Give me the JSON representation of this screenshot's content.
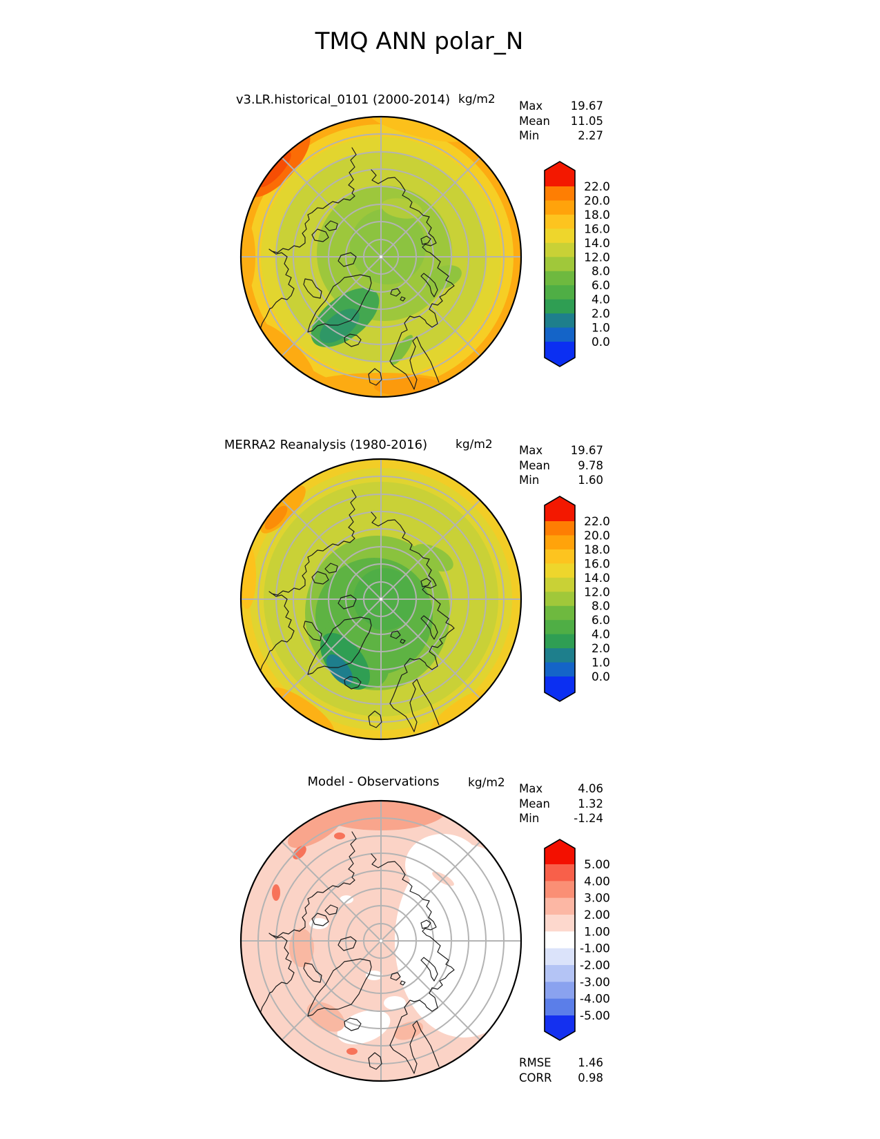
{
  "figure_title": "TMQ ANN polar_N",
  "panels": [
    {
      "id": "model",
      "title": "v3.LR.historical_0101 (2000-2014)",
      "units": "kg/m2",
      "stats": {
        "max_label": "Max",
        "max": "19.67",
        "mean_label": "Mean",
        "mean": "11.05",
        "min_label": "Min",
        "min": "2.27"
      },
      "colorbar": {
        "tick_labels_top_to_bottom": [
          "22.0",
          "20.0",
          "18.0",
          "16.0",
          "14.0",
          "12.0",
          "8.0",
          "6.0",
          "4.0",
          "2.0",
          "1.0",
          "0.0"
        ],
        "band_colors_bottom_to_top": [
          "#1464c8",
          "#1e7f8c",
          "#2f9e53",
          "#4fae45",
          "#6eb93f",
          "#a0c83a",
          "#c9d136",
          "#eed62c",
          "#fdc41f",
          "#ffa30b",
          "#fe7e03"
        ],
        "under_arrow_color": "#0b2ff2",
        "over_arrow_color": "#f31800"
      }
    },
    {
      "id": "obs",
      "title": "MERRA2 Reanalysis (1980-2016)",
      "units": "kg/m2",
      "stats": {
        "max_label": "Max",
        "max": "19.67",
        "mean_label": "Mean",
        "mean": "9.78",
        "min_label": "Min",
        "min": "1.60"
      },
      "colorbar": {
        "tick_labels_top_to_bottom": [
          "22.0",
          "20.0",
          "18.0",
          "16.0",
          "14.0",
          "12.0",
          "8.0",
          "6.0",
          "4.0",
          "2.0",
          "1.0",
          "0.0"
        ],
        "band_colors_bottom_to_top": [
          "#1464c8",
          "#1e7f8c",
          "#2f9e53",
          "#4fae45",
          "#6eb93f",
          "#a0c83a",
          "#c9d136",
          "#eed62c",
          "#fdc41f",
          "#ffa30b",
          "#fe7e03"
        ],
        "under_arrow_color": "#0b2ff2",
        "over_arrow_color": "#f31800"
      }
    },
    {
      "id": "diff",
      "title": "Model - Observations",
      "units": "kg/m2",
      "stats": {
        "max_label": "Max",
        "max": "4.06",
        "mean_label": "Mean",
        "mean": "1.32",
        "min_label": "Min",
        "min": "-1.24"
      },
      "metrics": {
        "rmse_label": "RMSE",
        "rmse": "1.46",
        "corr_label": "CORR",
        "corr": "0.98"
      },
      "colorbar": {
        "tick_labels_top_to_bottom": [
          "5.00",
          "4.00",
          "3.00",
          "2.00",
          "1.00",
          "-1.00",
          "-2.00",
          "-3.00",
          "-4.00",
          "-5.00"
        ],
        "band_colors_bottom_to_top": [
          "#5b7ee9",
          "#8aa2ef",
          "#b4c4f5",
          "#dbe3fa",
          "#ffffff",
          "#fdd8cd",
          "#fcb7a4",
          "#fa8f75",
          "#f8604a"
        ],
        "under_arrow_color": "#1430f0",
        "over_arrow_color": "#f31000"
      }
    }
  ],
  "chart_data": [
    {
      "type": "heatmap",
      "subtype": "polar_contour_map",
      "title": "v3.LR.historical_0101 (2000-2014)",
      "units": "kg/m2",
      "projection": "north_polar_stereographic",
      "lat_range": [
        50,
        90
      ],
      "graticule": {
        "lat_circle_step_deg": 5,
        "lon_spoke_step_deg": 45
      },
      "contour_levels": [
        0,
        1,
        2,
        4,
        6,
        8,
        12,
        14,
        16,
        18,
        20,
        22
      ],
      "colormap": "rainbow (blue-teal-green-yellow-orange-red)",
      "stats": {
        "max": 19.67,
        "mean": 11.05,
        "min": 2.27
      },
      "description": "Total precipitable water: green low values (~6-10) over pole and Greenland, yellow-orange high values (14-20) toward 50N rim, orange-red patch at upper-left rim"
    },
    {
      "type": "heatmap",
      "subtype": "polar_contour_map",
      "title": "MERRA2 Reanalysis (1980-2016)",
      "units": "kg/m2",
      "projection": "north_polar_stereographic",
      "lat_range": [
        50,
        90
      ],
      "graticule": {
        "lat_circle_step_deg": 5,
        "lon_spoke_step_deg": 45
      },
      "contour_levels": [
        0,
        1,
        2,
        4,
        6,
        8,
        12,
        14,
        16,
        18,
        20,
        22
      ],
      "colormap": "rainbow (blue-teal-green-yellow-orange-red)",
      "stats": {
        "max": 19.67,
        "mean": 9.78,
        "min": 1.6
      },
      "description": "Lower values than model: larger green pool around pole, teal patch (2-4) over Greenland, yellow rim with orange patches at lower and left edges"
    },
    {
      "type": "heatmap",
      "subtype": "polar_contour_map",
      "title": "Model - Observations",
      "units": "kg/m2",
      "projection": "north_polar_stereographic",
      "lat_range": [
        50,
        90
      ],
      "graticule": {
        "lat_circle_step_deg": 5,
        "lon_spoke_step_deg": 45
      },
      "contour_levels": [
        -5,
        -4,
        -3,
        -2,
        -1,
        1,
        2,
        3,
        4,
        5
      ],
      "colormap": "bwr (blue-white-red diverging)",
      "stats": {
        "max": 4.06,
        "mean": 1.32,
        "min": -1.24,
        "rmse": 1.46,
        "corr": 0.98
      },
      "description": "Mostly light pink bias +1 to +2, darker pink band +2 to +3 at top rim, white (-1 to +1) sector on right/east side, small red spots +3 to +4 upper-left"
    }
  ]
}
